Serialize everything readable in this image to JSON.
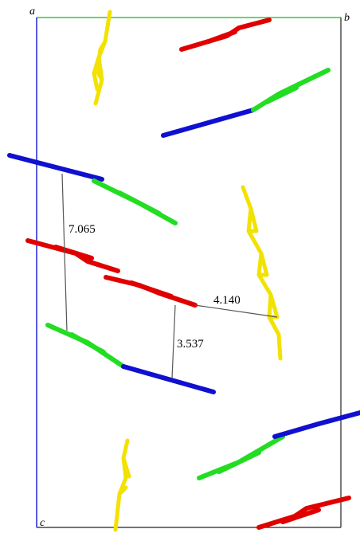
{
  "axis_labels": [
    "a",
    "b",
    "c"
  ],
  "distance_labels": [
    "7.065",
    "4.140",
    "3.537"
  ]
}
